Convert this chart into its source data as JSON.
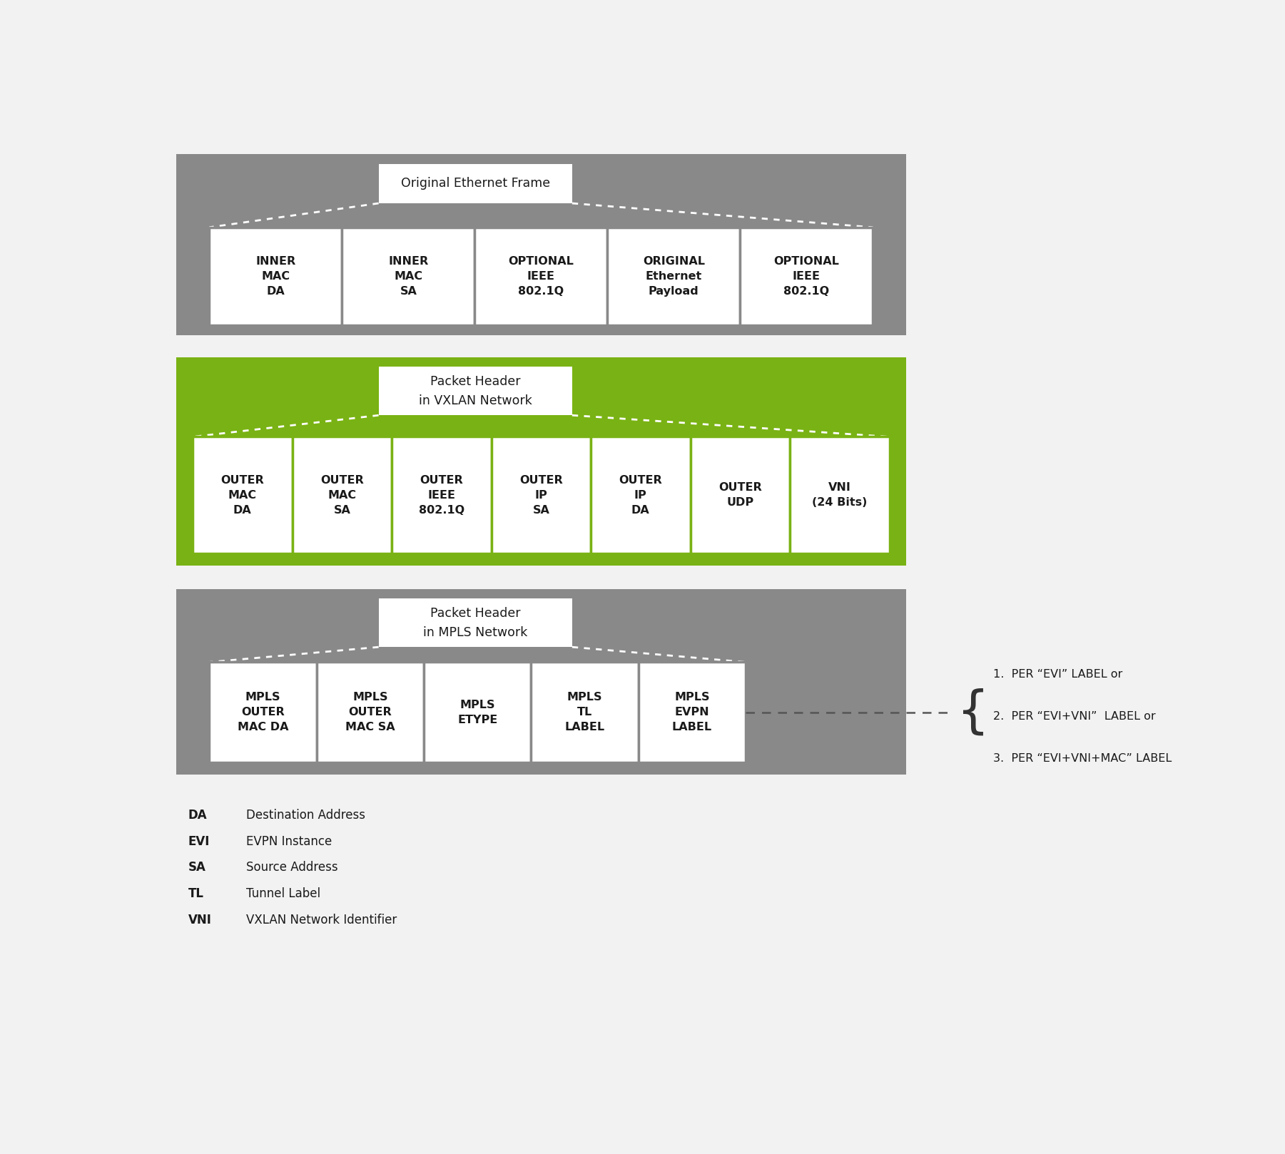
{
  "bg_color": "#f2f2f2",
  "gray_bg": "#898989",
  "green_bg": "#79b214",
  "white": "#ffffff",
  "dark_text": "#1a1a1a",
  "section1": {
    "bg_color": "#898989",
    "title": "Original Ethernet Frame",
    "fields": [
      {
        "label": "INNER\nMAC\nDA"
      },
      {
        "label": "INNER\nMAC\nSA"
      },
      {
        "label": "OPTIONAL\nIEEE\n802.1Q"
      },
      {
        "label": "ORIGINAL\nEthernet\nPayload"
      },
      {
        "label": "OPTIONAL\nIEEE\n802.1Q"
      }
    ]
  },
  "section2": {
    "bg_color": "#79b214",
    "title": "Packet Header\nin VXLAN Network",
    "fields": [
      {
        "label": "OUTER\nMAC\nDA"
      },
      {
        "label": "OUTER\nMAC\nSA"
      },
      {
        "label": "OUTER\nIEEE\n802.1Q"
      },
      {
        "label": "OUTER\nIP\nSA"
      },
      {
        "label": "OUTER\nIP\nDA"
      },
      {
        "label": "OUTER\nUDP"
      },
      {
        "label": "VNI\n(24 Bits)"
      }
    ]
  },
  "section3": {
    "bg_color": "#898989",
    "title": "Packet Header\nin MPLS Network",
    "fields": [
      {
        "label": "MPLS\nOUTER\nMAC DA"
      },
      {
        "label": "MPLS\nOUTER\nMAC SA"
      },
      {
        "label": "MPLS\nETYPE"
      },
      {
        "label": "MPLS\nTL\nLABEL"
      },
      {
        "label": "MPLS\nEVPN\nLABEL"
      }
    ]
  },
  "legend": [
    {
      "abbr": "DA",
      "full": "Destination Address"
    },
    {
      "abbr": "EVI",
      "full": "EVPN Instance"
    },
    {
      "abbr": "SA",
      "full": "Source Address"
    },
    {
      "abbr": "TL",
      "full": "Tunnel Label"
    },
    {
      "abbr": "VNI",
      "full": "VXLAN Network Identifier"
    }
  ],
  "mpls_labels": [
    "1.  PER “EVI” LABEL or",
    "2.  PER “EVI+VNI”  LABEL or",
    "3.  PER “EVI+VNI+MAC” LABEL"
  ]
}
